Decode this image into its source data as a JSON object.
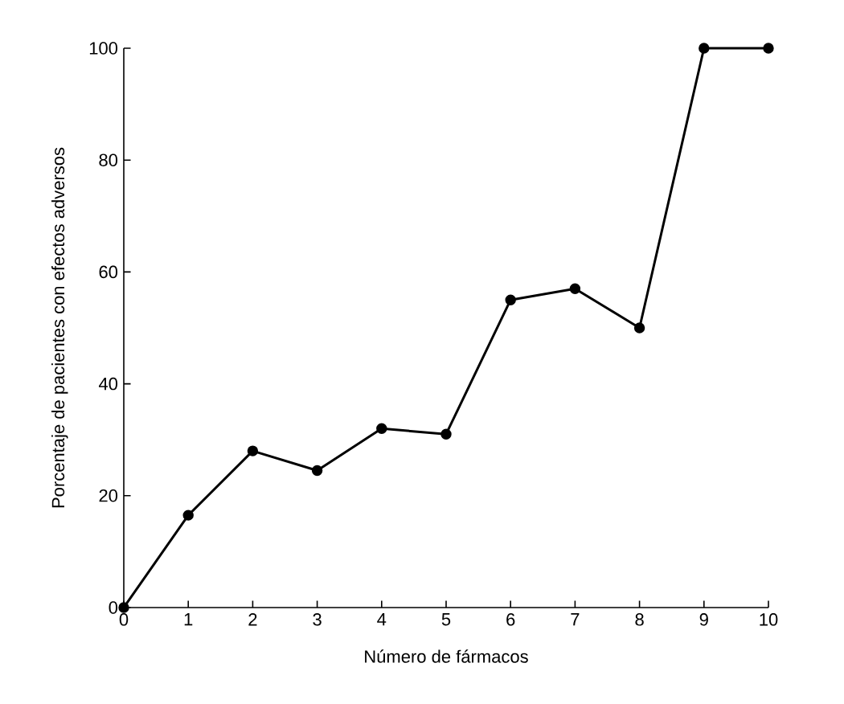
{
  "chart_data": {
    "type": "line",
    "xlabel": "Número de fármacos",
    "ylabel": "Porcentaje de pacientes con efectos adversos",
    "x": [
      0,
      1,
      2,
      3,
      4,
      5,
      6,
      7,
      8,
      9,
      10
    ],
    "values": [
      0,
      16.5,
      28,
      24.5,
      32,
      31,
      55,
      57,
      50,
      100,
      100
    ],
    "color": "#000000",
    "marker": "circle",
    "line_style": "solid",
    "xlim": [
      0,
      10
    ],
    "ylim": [
      0,
      100
    ],
    "xticks": [
      0,
      1,
      2,
      3,
      4,
      5,
      6,
      7,
      8,
      9,
      10
    ],
    "yticks": [
      0,
      20,
      40,
      60,
      80,
      100
    ]
  }
}
